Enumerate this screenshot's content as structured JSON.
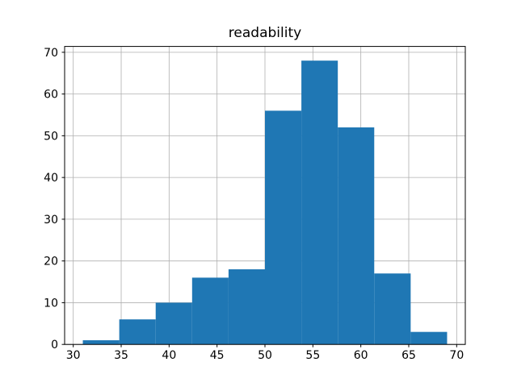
{
  "chart_data": {
    "type": "histogram",
    "title": "readability",
    "bin_edges": [
      31.0,
      34.8,
      38.6,
      42.4,
      46.2,
      50.0,
      53.8,
      57.6,
      61.4,
      65.2,
      69.0
    ],
    "counts": [
      1,
      6,
      10,
      16,
      18,
      56,
      68,
      52,
      17,
      3
    ],
    "x_ticks": [
      30,
      35,
      40,
      45,
      50,
      55,
      60,
      65,
      70
    ],
    "y_ticks": [
      0,
      10,
      20,
      30,
      40,
      50,
      60,
      70
    ],
    "xlim": [
      29.1,
      70.9
    ],
    "ylim": [
      0,
      71.4
    ],
    "xlabel": "",
    "ylabel": "",
    "grid": true,
    "legend": false,
    "bar_color": "#1f77b4",
    "grid_color": "#b0b0b0",
    "spine_color": "#000000",
    "tick_label_color": "#000000",
    "background_color": "#ffffff"
  }
}
